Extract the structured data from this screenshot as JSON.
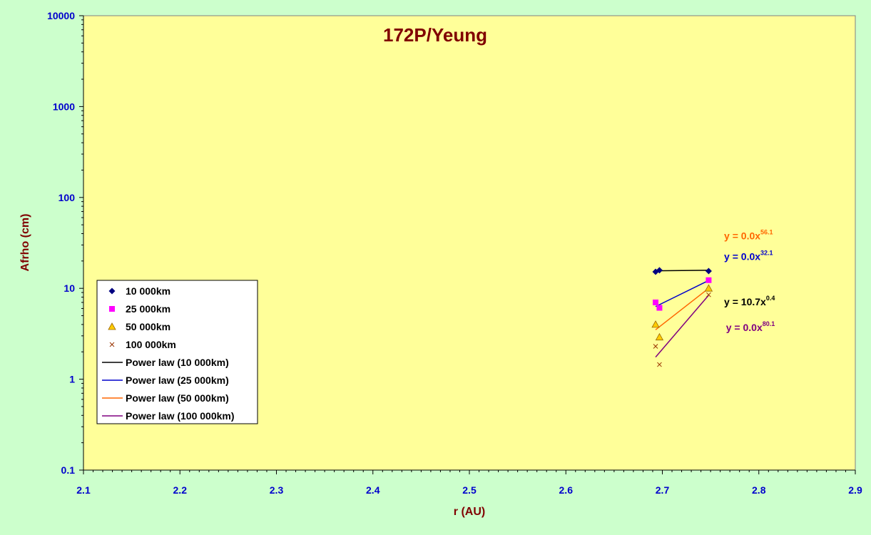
{
  "chart_data": {
    "type": "scatter",
    "title": "172P/Yeung",
    "xlabel": "r (AU)",
    "ylabel": "Afrho (cm)",
    "xlim": [
      2.1,
      2.9
    ],
    "ylim": [
      0.1,
      10000
    ],
    "y_scale": "log",
    "x_ticks": [
      "2.1",
      "2.2",
      "2.3",
      "2.4",
      "2.5",
      "2.6",
      "2.7",
      "2.8",
      "2.9"
    ],
    "y_ticks": [
      "0.1",
      "1",
      "10",
      "100",
      "1000",
      "10000"
    ],
    "grid": false,
    "legend_position": "lower-left",
    "series": [
      {
        "name": "10 000km",
        "marker": "diamond",
        "color": "#000080",
        "points": [
          [
            2.693,
            15.2
          ],
          [
            2.697,
            15.8
          ],
          [
            2.748,
            15.5
          ]
        ]
      },
      {
        "name": "25 000km",
        "marker": "square",
        "color": "#ff00ff",
        "points": [
          [
            2.693,
            7.0
          ],
          [
            2.697,
            6.1
          ],
          [
            2.748,
            12.3
          ]
        ]
      },
      {
        "name": "50 000km",
        "marker": "triangle",
        "color": "#ffcc00",
        "points": [
          [
            2.693,
            4.0
          ],
          [
            2.697,
            2.9
          ],
          [
            2.748,
            10.0
          ]
        ]
      },
      {
        "name": "100 000km",
        "marker": "x",
        "color": "#993300",
        "points": [
          [
            2.693,
            2.3
          ],
          [
            2.697,
            1.45
          ],
          [
            2.748,
            8.5
          ]
        ]
      }
    ],
    "trendlines": [
      {
        "name": "Power law (10 000km)",
        "color": "#000000",
        "x": [
          2.693,
          2.748
        ],
        "y": [
          15.6,
          15.8
        ],
        "equation": {
          "base": "y = 10.7x",
          "exp": "0.4"
        },
        "label_x": 2.764,
        "label_y": 6.5
      },
      {
        "name": "Power law (25 000km)",
        "color": "#0000cc",
        "x": [
          2.693,
          2.748
        ],
        "y": [
          6.3,
          12.2
        ],
        "equation": {
          "base": "y = 0.0x",
          "exp": "32.1"
        },
        "label_x": 2.764,
        "label_y": 20.5
      },
      {
        "name": "Power law (50 000km)",
        "color": "#ff6600",
        "x": [
          2.693,
          2.748
        ],
        "y": [
          3.5,
          10.0
        ],
        "equation": {
          "base": "y = 0.0x",
          "exp": "56.1"
        },
        "label_x": 2.764,
        "label_y": 34.5
      },
      {
        "name": "Power law (100 000km)",
        "color": "#800080",
        "x": [
          2.693,
          2.748
        ],
        "y": [
          1.75,
          8.4
        ],
        "equation": {
          "base": "y = 0.0x",
          "exp": "80.1"
        },
        "label_x": 2.766,
        "label_y": 3.4
      }
    ]
  },
  "colors": {
    "background": "#ccffcc",
    "plot_area": "#ffff99",
    "tick_label": "#0000cc",
    "axis_title": "#800000"
  }
}
